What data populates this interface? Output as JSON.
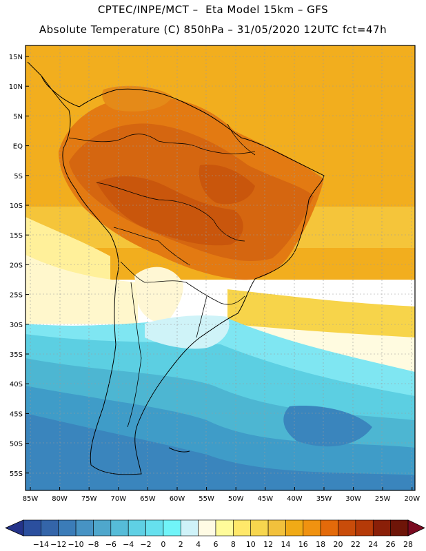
{
  "header": {
    "title_line1": "CPTEC/INPE/MCT –  Eta Model 15km – GFS",
    "title_line2": "Absolute Temperature (C) 850hPa – 31/05/2020 12UTC fct=47h"
  },
  "map": {
    "lat_labels": [
      "15N",
      "10N",
      "5N",
      "EQ",
      "5S",
      "10S",
      "15S",
      "20S",
      "25S",
      "30S",
      "35S",
      "40S",
      "45S",
      "50S",
      "55S"
    ],
    "lon_labels": [
      "85W",
      "80W",
      "75W",
      "70W",
      "65W",
      "60W",
      "55W",
      "50W",
      "45W",
      "40W",
      "35W",
      "30W",
      "25W",
      "20W"
    ],
    "field": "Absolute Temperature",
    "level": "850hPa"
  },
  "colorbar": {
    "labels": [
      "-14",
      "-12",
      "-10",
      "-8",
      "-6",
      "-4",
      "-2",
      "0",
      "2",
      "4",
      "6",
      "8",
      "10",
      "12",
      "14",
      "16",
      "18",
      "20",
      "22",
      "24",
      "26",
      "28"
    ],
    "colors": [
      "#2b4f9e",
      "#3465a9",
      "#3b7cb8",
      "#4793c4",
      "#4fa7cc",
      "#56bcd8",
      "#5fd0e4",
      "#66e0ee",
      "#70f4f8",
      "#cff2f8",
      "#fffbe4",
      "#fffb9a",
      "#ffe86a",
      "#f7d64e",
      "#f2c13c",
      "#f0aa16",
      "#f09210",
      "#e36a0a",
      "#c94c0a",
      "#b53a08",
      "#8a1f08",
      "#6e1508"
    ],
    "under_color": "#24338a",
    "over_color": "#7a0a20"
  }
}
